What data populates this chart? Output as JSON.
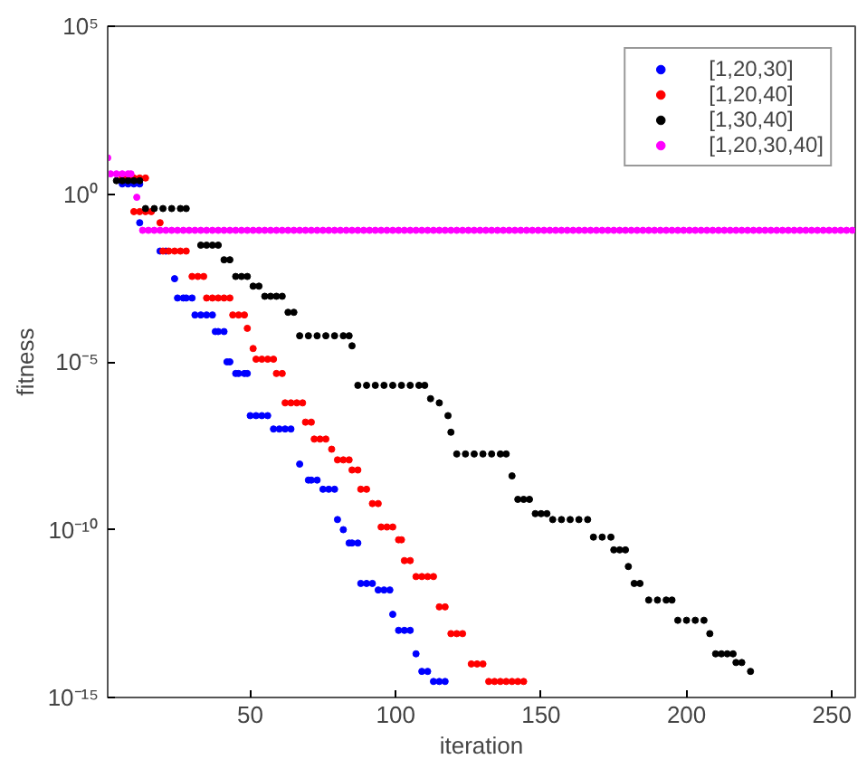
{
  "chart_data": {
    "type": "scatter",
    "xlabel": "iteration",
    "ylabel": "fitness",
    "xlim": [
      1,
      258
    ],
    "xticks": [
      50,
      100,
      150,
      200,
      250
    ],
    "ylim": [
      1e-15,
      100000.0
    ],
    "yticks": [
      {
        "value": 1e-15,
        "label": "10⁻¹⁵"
      },
      {
        "value": 1e-10,
        "label": "10⁻¹⁰"
      },
      {
        "value": 1e-05,
        "label": "10⁻⁵"
      },
      {
        "value": 1,
        "label": "10⁰"
      },
      {
        "value": 100000.0,
        "label": "10⁵"
      }
    ],
    "log": "y",
    "grid": false,
    "legend": "top right",
    "marker": "circle",
    "series": [
      {
        "name": "[1,20,30]",
        "color": "#0000ff",
        "x": [
          6,
          8,
          10,
          12,
          12,
          19,
          21,
          24,
          25,
          27,
          28,
          30,
          31,
          33,
          35,
          37,
          38,
          39,
          41,
          42,
          43,
          45,
          46,
          48,
          49,
          50,
          52,
          54,
          56,
          58,
          60,
          62,
          64,
          67,
          70,
          71,
          73,
          75,
          77,
          79,
          80,
          82,
          84,
          85,
          87,
          88,
          90,
          92,
          94,
          96,
          98,
          99,
          101,
          103,
          105,
          107,
          109,
          111,
          113,
          115,
          117
        ],
        "values": [
          2,
          2,
          2,
          2,
          0.14,
          0.02,
          0.02,
          0.003,
          0.0008,
          0.0008,
          0.0008,
          0.0008,
          0.00025,
          0.00025,
          0.00025,
          0.00025,
          8e-05,
          8e-05,
          8e-05,
          1e-05,
          1e-05,
          4.5e-06,
          4.5e-06,
          4.5e-06,
          4.5e-06,
          2.5e-07,
          2.5e-07,
          2.5e-07,
          2.5e-07,
          1e-07,
          1e-07,
          1e-07,
          1e-07,
          9e-09,
          3e-09,
          3e-09,
          3e-09,
          1.6e-09,
          1.6e-09,
          1.6e-09,
          2e-10,
          1e-10,
          4e-11,
          4e-11,
          4e-11,
          2.5e-12,
          2.5e-12,
          2.5e-12,
          1.6e-12,
          1.6e-12,
          1.6e-12,
          3e-13,
          1e-13,
          1e-13,
          1e-13,
          2e-14,
          6e-15,
          6e-15,
          3e-15,
          3e-15,
          3e-15
        ]
      },
      {
        "name": "[1,20,40]",
        "color": "#ff0000",
        "x": [
          6,
          8,
          10,
          12,
          14,
          10,
          12,
          14,
          16,
          19,
          20,
          22,
          24,
          26,
          28,
          30,
          32,
          34,
          35,
          37,
          39,
          41,
          43,
          44,
          46,
          48,
          49,
          51,
          52,
          54,
          56,
          58,
          59,
          61,
          62,
          64,
          66,
          68,
          69,
          71,
          72,
          74,
          76,
          78,
          80,
          82,
          84,
          85,
          87,
          88,
          90,
          92,
          94,
          95,
          97,
          99,
          101,
          102,
          103,
          105,
          107,
          109,
          111,
          113,
          115,
          117,
          119,
          121,
          123,
          126,
          128,
          130,
          132,
          134,
          136,
          138,
          140,
          142,
          144
        ],
        "values": [
          3,
          3,
          3,
          3,
          3,
          0.3,
          0.3,
          0.3,
          0.3,
          0.14,
          0.02,
          0.02,
          0.02,
          0.02,
          0.02,
          0.0035,
          0.0035,
          0.0035,
          0.0008,
          0.0008,
          0.0008,
          0.0008,
          0.0008,
          0.00025,
          0.00025,
          0.00025,
          0.0001,
          2.5e-05,
          1.2e-05,
          1.2e-05,
          1.2e-05,
          1.2e-05,
          4.5e-06,
          4.5e-06,
          6e-07,
          6e-07,
          6e-07,
          6e-07,
          1.6e-07,
          1.6e-07,
          5e-08,
          5e-08,
          5e-08,
          2.5e-08,
          1.2e-08,
          1.2e-08,
          1.2e-08,
          6e-09,
          6e-09,
          1.6e-09,
          1.6e-09,
          6e-10,
          6e-10,
          1.2e-10,
          1.2e-10,
          1.2e-10,
          5e-11,
          5e-11,
          1.2e-11,
          1.2e-11,
          4e-12,
          4e-12,
          4e-12,
          4e-12,
          5e-13,
          5e-13,
          8e-14,
          8e-14,
          8e-14,
          1e-14,
          1e-14,
          1e-14,
          3e-15,
          3e-15,
          3e-15,
          3e-15,
          3e-15,
          3e-15,
          3e-15
        ]
      },
      {
        "name": "[1,30,40]",
        "color": "#000000",
        "x": [
          4,
          6,
          8,
          10,
          12,
          14,
          17,
          20,
          23,
          26,
          28,
          33,
          35,
          37,
          39,
          41,
          43,
          45,
          47,
          49,
          51,
          53,
          55,
          57,
          59,
          61,
          63,
          65,
          67,
          70,
          73,
          76,
          79,
          82,
          84,
          85,
          87,
          90,
          93,
          96,
          99,
          102,
          105,
          108,
          110,
          112,
          115,
          118,
          119,
          121,
          124,
          127,
          130,
          133,
          136,
          138,
          140,
          142,
          144,
          146,
          148,
          150,
          152,
          154,
          157,
          160,
          163,
          166,
          168,
          171,
          174,
          175,
          177,
          179,
          180,
          182,
          184,
          187,
          190,
          193,
          195,
          197,
          200,
          203,
          206,
          208,
          210,
          212,
          214,
          216,
          217,
          219,
          222
        ],
        "values": [
          2.5,
          2.5,
          2.5,
          2.5,
          2.5,
          0.37,
          0.37,
          0.37,
          0.37,
          0.37,
          0.37,
          0.03,
          0.03,
          0.03,
          0.03,
          0.011,
          0.011,
          0.0035,
          0.0035,
          0.0035,
          0.0018,
          0.0018,
          0.0009,
          0.0009,
          0.0009,
          0.0009,
          0.0003,
          0.0003,
          6e-05,
          6e-05,
          6e-05,
          6e-05,
          6e-05,
          6e-05,
          6e-05,
          3e-05,
          2e-06,
          2e-06,
          2e-06,
          2e-06,
          2e-06,
          2e-06,
          2e-06,
          2e-06,
          2e-06,
          8e-07,
          6e-07,
          2.5e-07,
          8e-08,
          1.8e-08,
          1.8e-08,
          1.8e-08,
          1.8e-08,
          1.8e-08,
          1.8e-08,
          1.8e-08,
          4e-09,
          8e-10,
          8e-10,
          8e-10,
          3e-10,
          3e-10,
          3e-10,
          2e-10,
          2e-10,
          2e-10,
          2e-10,
          2e-10,
          6e-11,
          6e-11,
          6e-11,
          2.5e-11,
          2.5e-11,
          2.5e-11,
          8e-12,
          2.5e-12,
          2.5e-12,
          8e-13,
          8e-13,
          8e-13,
          8e-13,
          2e-13,
          2e-13,
          2e-13,
          2e-13,
          8e-14,
          2e-14,
          2e-14,
          2e-14,
          2e-14,
          1.1e-14,
          1.1e-14,
          6e-15
        ]
      },
      {
        "name": "[1,20,30,40]",
        "color": "#ff00ff",
        "x": [
          1,
          2,
          4,
          6,
          8,
          9,
          11,
          13,
          15,
          17,
          19,
          21,
          23,
          25,
          27,
          29,
          31,
          33,
          35,
          37,
          39,
          41,
          43,
          45,
          47,
          49,
          51,
          53,
          55,
          57,
          59,
          61,
          63,
          65,
          67,
          69,
          71,
          73,
          75,
          77,
          79,
          81,
          83,
          85,
          87,
          89,
          91,
          93,
          95,
          97,
          99,
          101,
          103,
          105,
          107,
          109,
          111,
          113,
          115,
          117,
          119,
          121,
          123,
          125,
          127,
          129,
          131,
          133,
          135,
          137,
          139,
          141,
          143,
          145,
          147,
          149,
          151,
          153,
          155,
          157,
          159,
          161,
          163,
          165,
          167,
          169,
          171,
          173,
          175,
          177,
          179,
          181,
          183,
          185,
          187,
          189,
          191,
          193,
          195,
          197,
          199,
          201,
          203,
          205,
          207,
          209,
          211,
          213,
          215,
          217,
          219,
          221,
          223,
          225,
          227,
          229,
          231,
          233,
          235,
          237,
          239,
          241,
          243,
          245,
          247,
          249,
          251,
          253,
          255,
          257
        ],
        "values": [
          12,
          4,
          4,
          4,
          4,
          4,
          0.8,
          0.083,
          0.083,
          0.083,
          0.083,
          0.083,
          0.083,
          0.083,
          0.083,
          0.083,
          0.083,
          0.083,
          0.083,
          0.083,
          0.083,
          0.083,
          0.083,
          0.083,
          0.083,
          0.083,
          0.083,
          0.083,
          0.083,
          0.083,
          0.083,
          0.083,
          0.083,
          0.083,
          0.083,
          0.083,
          0.083,
          0.083,
          0.083,
          0.083,
          0.083,
          0.083,
          0.083,
          0.083,
          0.083,
          0.083,
          0.083,
          0.083,
          0.083,
          0.083,
          0.083,
          0.083,
          0.083,
          0.083,
          0.083,
          0.083,
          0.083,
          0.083,
          0.083,
          0.083,
          0.083,
          0.083,
          0.083,
          0.083,
          0.083,
          0.083,
          0.083,
          0.083,
          0.083,
          0.083,
          0.083,
          0.083,
          0.083,
          0.083,
          0.083,
          0.083,
          0.083,
          0.083,
          0.083,
          0.083,
          0.083,
          0.083,
          0.083,
          0.083,
          0.083,
          0.083,
          0.083,
          0.083,
          0.083,
          0.083,
          0.083,
          0.083,
          0.083,
          0.083,
          0.083,
          0.083,
          0.083,
          0.083,
          0.083,
          0.083,
          0.083,
          0.083,
          0.083,
          0.083,
          0.083,
          0.083,
          0.083,
          0.083,
          0.083,
          0.083,
          0.083,
          0.083,
          0.083,
          0.083,
          0.083,
          0.083,
          0.083,
          0.083,
          0.083,
          0.083,
          0.083,
          0.083,
          0.083,
          0.083,
          0.083,
          0.083,
          0.083,
          0.083,
          0.083,
          0.083
        ]
      }
    ]
  }
}
